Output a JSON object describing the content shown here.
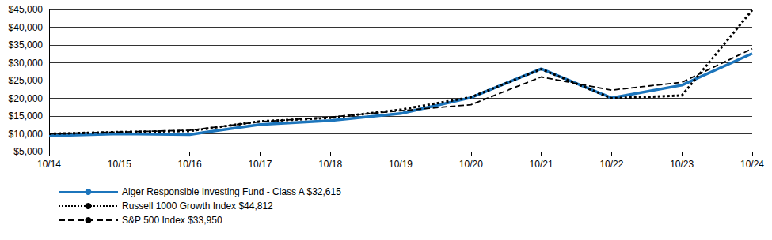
{
  "chart_data": {
    "type": "line",
    "categories": [
      "10/14",
      "10/15",
      "10/16",
      "10/17",
      "10/18",
      "10/19",
      "10/20",
      "10/21",
      "10/22",
      "10/23",
      "10/24"
    ],
    "series": [
      {
        "name": "Alger Responsible Investing Fund - Class A $32,615",
        "color": "#1c75bc",
        "line_style": "solid",
        "marker": "none",
        "values": [
          9450,
          10000,
          9800,
          12600,
          13700,
          15700,
          20200,
          28300,
          20100,
          23700,
          32615
        ]
      },
      {
        "name": "Russell 1000 Growth Index $44,812",
        "color": "#000000",
        "line_style": "dotted",
        "marker": "none",
        "values": [
          10000,
          10500,
          10800,
          13500,
          14500,
          16800,
          20300,
          28200,
          20000,
          20800,
          44812
        ]
      },
      {
        "name": "S&P 500 Index $33,950",
        "color": "#000000",
        "line_style": "dashed",
        "marker": "none",
        "values": [
          10000,
          10500,
          11000,
          13400,
          14700,
          16500,
          18200,
          26000,
          22300,
          24500,
          33950
        ]
      }
    ],
    "ylim": [
      5000,
      45000
    ],
    "yticks": [
      {
        "value": 5000,
        "label": "$5,000"
      },
      {
        "value": 10000,
        "label": "$10,000"
      },
      {
        "value": 15000,
        "label": "$15,000"
      },
      {
        "value": 20000,
        "label": "$20,000"
      },
      {
        "value": 25000,
        "label": "$25,000"
      },
      {
        "value": 30000,
        "label": "$30,000"
      },
      {
        "value": 35000,
        "label": "$35,000"
      },
      {
        "value": 40000,
        "label": "$40,000"
      },
      {
        "value": 45000,
        "label": "$45,000"
      }
    ],
    "grid": true,
    "legend": "bottom-left"
  }
}
